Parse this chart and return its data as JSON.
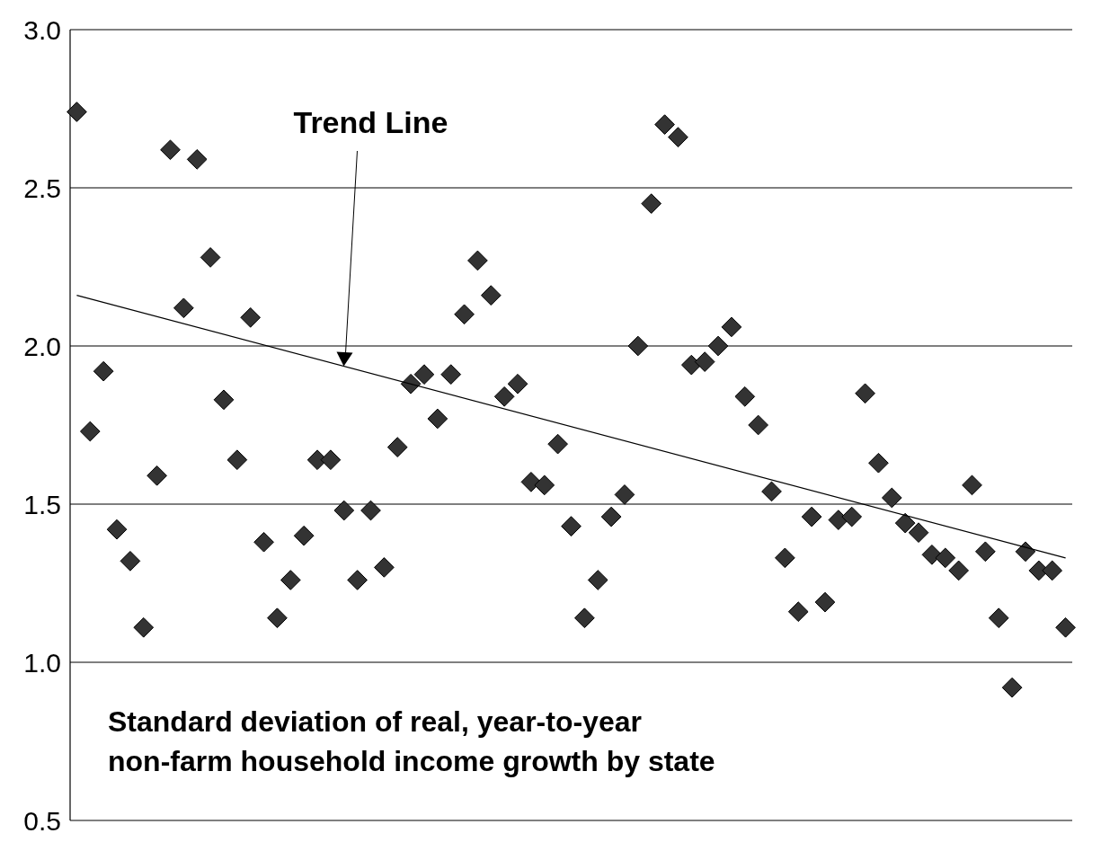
{
  "chart_data": {
    "type": "scatter",
    "title": "Standard deviation of real, year-to-year\nnon-farm household income growth by state",
    "categories": [
      null,
      null,
      null,
      null,
      null,
      null,
      null,
      null,
      null,
      null,
      null,
      null,
      null,
      null,
      null,
      null,
      null,
      null,
      null,
      null,
      null,
      null,
      null,
      null,
      null,
      null,
      null,
      null,
      null,
      null,
      null,
      null,
      null,
      null,
      null,
      null,
      null,
      null,
      null,
      null,
      null,
      null,
      null,
      null,
      null,
      null,
      null,
      null,
      null,
      null,
      null,
      null,
      null,
      null,
      null,
      null,
      null,
      null,
      null,
      null,
      null,
      null,
      null,
      null,
      null,
      null,
      null,
      null,
      null,
      null,
      null,
      null,
      null,
      null,
      null
    ],
    "series": [
      {
        "color": "#333333",
        "marker": "diamond",
        "values": [
          2.74,
          1.73,
          1.92,
          1.42,
          1.32,
          1.11,
          1.59,
          2.62,
          2.12,
          2.59,
          2.28,
          1.83,
          1.64,
          2.09,
          1.38,
          1.14,
          1.26,
          1.4,
          1.64,
          1.64,
          1.48,
          1.26,
          1.48,
          1.3,
          1.68,
          1.88,
          1.91,
          1.77,
          1.91,
          2.1,
          2.27,
          2.16,
          1.84,
          1.88,
          1.57,
          1.56,
          1.69,
          1.43,
          1.14,
          1.26,
          1.46,
          1.53,
          2.0,
          2.45,
          2.7,
          2.66,
          1.94,
          1.95,
          2.0,
          2.06,
          1.84,
          1.75,
          1.54,
          1.33,
          1.16,
          1.46,
          1.19,
          1.45,
          1.46,
          1.85,
          1.63,
          1.52,
          1.44,
          1.41,
          1.34,
          1.33,
          1.29,
          1.56,
          1.35,
          1.14,
          0.92,
          1.35,
          1.29,
          1.29,
          1.11
        ]
      },
      {
        "type": "line",
        "color": "#000000",
        "values": [
          2.16,
          null,
          null,
          null,
          null,
          null,
          null,
          null,
          null,
          null,
          null,
          null,
          null,
          null,
          null,
          null,
          null,
          null,
          null,
          null,
          null,
          null,
          null,
          null,
          null,
          null,
          null,
          null,
          null,
          null,
          null,
          null,
          null,
          null,
          null,
          null,
          null,
          null,
          null,
          null,
          null,
          null,
          null,
          null,
          null,
          null,
          null,
          null,
          null,
          null,
          null,
          null,
          null,
          null,
          null,
          null,
          null,
          null,
          null,
          null,
          null,
          null,
          null,
          null,
          null,
          null,
          null,
          null,
          null,
          null,
          null,
          null,
          null,
          null,
          1.33
        ]
      }
    ],
    "annotations": [
      "Trend Line"
    ],
    "ylim": [
      0.5,
      3.0
    ],
    "yticks": [
      {
        "value": 0.5,
        "label": "0.5"
      },
      {
        "value": 1.0,
        "label": "1.0"
      },
      {
        "value": 1.5,
        "label": "1.5"
      },
      {
        "value": 2.0,
        "label": "2.0"
      },
      {
        "value": 2.5,
        "label": "2.5"
      },
      {
        "value": 3.0,
        "label": "3.0"
      }
    ],
    "grid": "y"
  }
}
